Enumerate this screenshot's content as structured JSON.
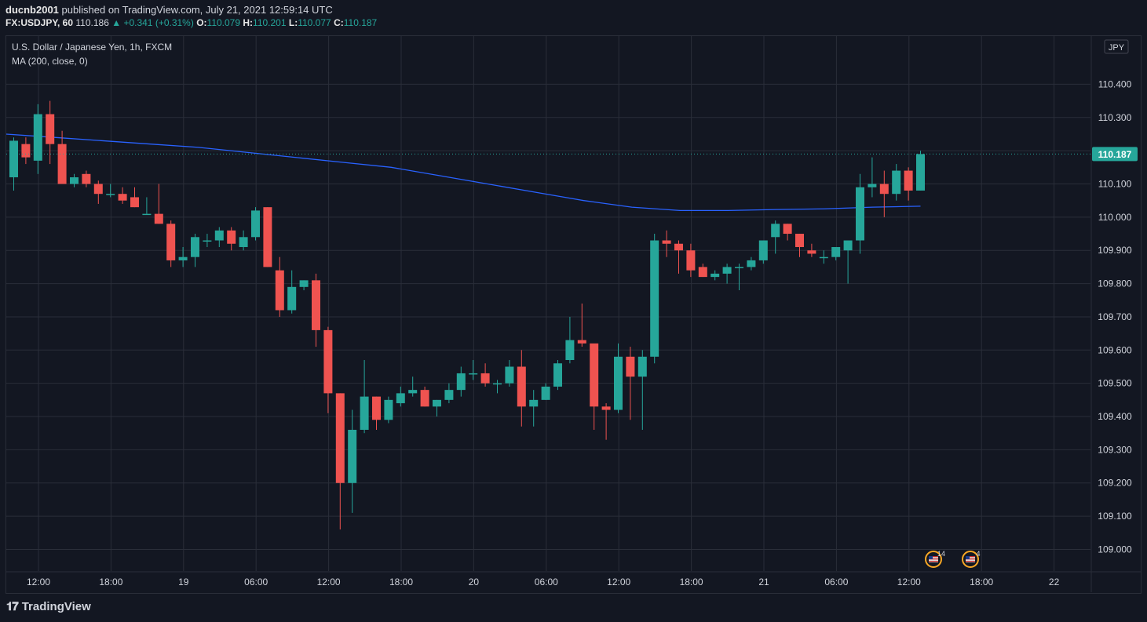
{
  "header": {
    "author": "ducnb2001",
    "published_text": "published on TradingView.com, July 21, 2021 12:59:14 UTC",
    "symbol": "FX:USDJPY, 60",
    "last": "110.186",
    "change": "▲ +0.341 (+0.31%)",
    "o_label": "O:",
    "o_value": "110.079",
    "h_label": "H:",
    "h_value": "110.201",
    "l_label": "L:",
    "l_value": "110.077",
    "c_label": "C:",
    "c_value": "110.187"
  },
  "legend": {
    "title": "U.S. Dollar / Japanese Yen, 1h, FXCM",
    "indicator": "MA (200, close, 0)"
  },
  "currency_badge": "JPY",
  "price_label": "110.187",
  "brand": "TradingView",
  "brand_icon": "tradingview-logo-icon",
  "colors": {
    "background": "#131722",
    "up": "#26a69a",
    "down": "#ef5350",
    "ma": "#2962ff",
    "grid": "#2a2e39",
    "text": "#d1d4dc"
  },
  "events": [
    {
      "icon": "us-flag-icon",
      "count": "14"
    },
    {
      "icon": "us-flag-icon",
      "count": "4"
    }
  ],
  "chart_data": {
    "type": "candlestick",
    "ylim": [
      108.935,
      110.545
    ],
    "y_ticks": [
      "110.400",
      "110.300",
      "110.200",
      "110.100",
      "110.000",
      "109.900",
      "109.800",
      "109.700",
      "109.600",
      "109.500",
      "109.400",
      "109.300",
      "109.200",
      "109.100",
      "109.000"
    ],
    "x_ticks": [
      "12:00",
      "18:00",
      "19",
      "06:00",
      "12:00",
      "18:00",
      "20",
      "06:00",
      "12:00",
      "18:00",
      "21",
      "06:00",
      "12:00",
      "18:00",
      "22"
    ],
    "ohlc": [
      [
        110.12,
        110.24,
        110.08,
        110.23
      ],
      [
        110.22,
        110.24,
        110.16,
        110.18
      ],
      [
        110.17,
        110.34,
        110.13,
        110.31
      ],
      [
        110.31,
        110.35,
        110.16,
        110.22
      ],
      [
        110.22,
        110.26,
        110.1,
        110.1
      ],
      [
        110.1,
        110.13,
        110.09,
        110.12
      ],
      [
        110.13,
        110.14,
        110.09,
        110.1
      ],
      [
        110.1,
        110.11,
        110.04,
        110.07
      ],
      [
        110.07,
        110.1,
        110.06,
        110.07
      ],
      [
        110.07,
        110.09,
        110.04,
        110.05
      ],
      [
        110.06,
        110.09,
        110.03,
        110.03
      ],
      [
        110.01,
        110.06,
        110.01,
        110.01
      ],
      [
        110.01,
        110.1,
        109.98,
        109.98
      ],
      [
        109.98,
        109.99,
        109.85,
        109.87
      ],
      [
        109.87,
        109.91,
        109.85,
        109.88
      ],
      [
        109.88,
        109.95,
        109.85,
        109.94
      ],
      [
        109.93,
        109.95,
        109.91,
        109.93
      ],
      [
        109.93,
        109.97,
        109.91,
        109.96
      ],
      [
        109.96,
        109.97,
        109.9,
        109.92
      ],
      [
        109.91,
        109.96,
        109.9,
        109.94
      ],
      [
        109.94,
        110.03,
        109.93,
        110.02
      ],
      [
        110.03,
        110.03,
        109.85,
        109.85
      ],
      [
        109.84,
        109.88,
        109.7,
        109.72
      ],
      [
        109.72,
        109.84,
        109.71,
        109.79
      ],
      [
        109.79,
        109.81,
        109.78,
        109.81
      ],
      [
        109.81,
        109.83,
        109.61,
        109.66
      ],
      [
        109.66,
        109.67,
        109.41,
        109.47
      ],
      [
        109.47,
        109.47,
        109.06,
        109.2
      ],
      [
        109.2,
        109.42,
        109.11,
        109.36
      ],
      [
        109.36,
        109.57,
        109.35,
        109.46
      ],
      [
        109.46,
        109.46,
        109.36,
        109.39
      ],
      [
        109.39,
        109.46,
        109.38,
        109.45
      ],
      [
        109.44,
        109.49,
        109.43,
        109.47
      ],
      [
        109.47,
        109.52,
        109.46,
        109.48
      ],
      [
        109.48,
        109.49,
        109.43,
        109.43
      ],
      [
        109.43,
        109.45,
        109.4,
        109.45
      ],
      [
        109.45,
        109.5,
        109.44,
        109.48
      ],
      [
        109.48,
        109.55,
        109.46,
        109.53
      ],
      [
        109.53,
        109.57,
        109.51,
        109.53
      ],
      [
        109.53,
        109.56,
        109.49,
        109.5
      ],
      [
        109.5,
        109.51,
        109.47,
        109.5
      ],
      [
        109.5,
        109.57,
        109.49,
        109.55
      ],
      [
        109.55,
        109.6,
        109.37,
        109.43
      ],
      [
        109.43,
        109.48,
        109.37,
        109.45
      ],
      [
        109.45,
        109.5,
        109.45,
        109.49
      ],
      [
        109.49,
        109.57,
        109.48,
        109.56
      ],
      [
        109.57,
        109.7,
        109.56,
        109.63
      ],
      [
        109.63,
        109.74,
        109.61,
        109.62
      ],
      [
        109.62,
        109.61,
        109.36,
        109.43
      ],
      [
        109.43,
        109.44,
        109.33,
        109.42
      ],
      [
        109.42,
        109.62,
        109.41,
        109.58
      ],
      [
        109.58,
        109.61,
        109.39,
        109.52
      ],
      [
        109.52,
        109.6,
        109.36,
        109.58
      ],
      [
        109.58,
        109.95,
        109.56,
        109.93
      ],
      [
        109.93,
        109.96,
        109.88,
        109.92
      ],
      [
        109.92,
        109.93,
        109.83,
        109.9
      ],
      [
        109.9,
        109.92,
        109.82,
        109.84
      ],
      [
        109.85,
        109.86,
        109.82,
        109.82
      ],
      [
        109.82,
        109.84,
        109.81,
        109.83
      ],
      [
        109.83,
        109.86,
        109.8,
        109.85
      ],
      [
        109.85,
        109.86,
        109.78,
        109.85
      ],
      [
        109.85,
        109.88,
        109.84,
        109.87
      ],
      [
        109.87,
        109.93,
        109.86,
        109.93
      ],
      [
        109.94,
        109.99,
        109.89,
        109.98
      ],
      [
        109.98,
        109.98,
        109.93,
        109.95
      ],
      [
        109.95,
        109.95,
        109.88,
        109.91
      ],
      [
        109.9,
        109.92,
        109.88,
        109.89
      ],
      [
        109.88,
        109.9,
        109.86,
        109.88
      ],
      [
        109.88,
        109.91,
        109.87,
        109.91
      ],
      [
        109.9,
        109.93,
        109.8,
        109.93
      ],
      [
        109.93,
        110.13,
        109.89,
        110.09
      ],
      [
        110.09,
        110.18,
        110.06,
        110.1
      ],
      [
        110.1,
        110.14,
        110.0,
        110.07
      ],
      [
        110.07,
        110.16,
        110.05,
        110.14
      ],
      [
        110.14,
        110.15,
        110.05,
        110.08
      ],
      [
        110.08,
        110.2,
        110.08,
        110.19
      ]
    ],
    "series": [
      {
        "values": [
          110.25,
          110.24,
          110.23,
          110.22,
          110.21,
          110.195,
          110.18,
          110.165,
          110.15,
          110.125,
          110.1,
          110.075,
          110.05,
          110.03,
          110.02,
          110.02,
          110.023,
          110.025,
          110.03,
          110.033
        ]
      }
    ]
  }
}
